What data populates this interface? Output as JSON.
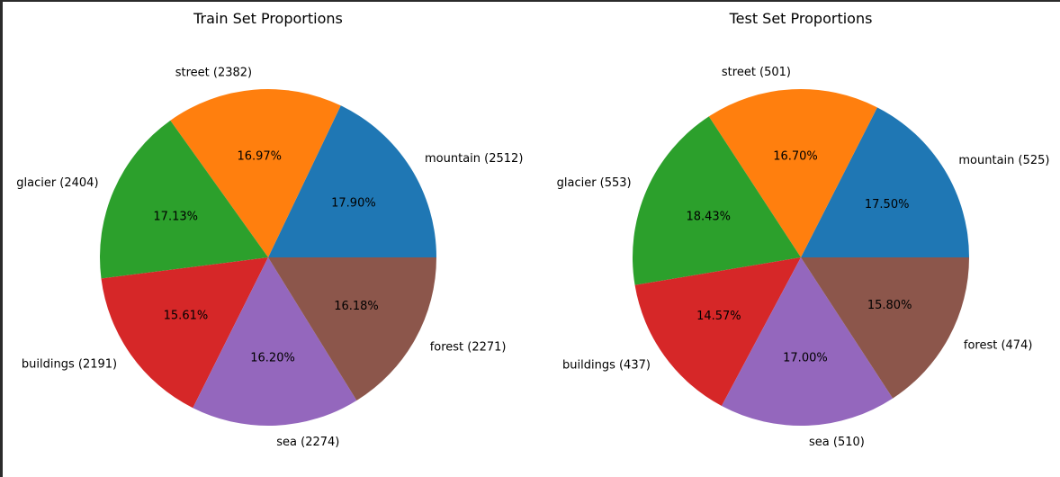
{
  "colors": {
    "palette": [
      "#1f77b4",
      "#ff7f0e",
      "#2ca02c",
      "#d62728",
      "#9467bd",
      "#8c564b"
    ],
    "background": "#ffffff",
    "text": "#000000"
  },
  "chart_data": [
    {
      "type": "pie",
      "title": "Train Set Proportions",
      "slices": [
        {
          "label": "mountain (2512)",
          "count": 2512,
          "pct": "17.90%",
          "color": "#1f77b4"
        },
        {
          "label": "street (2382)",
          "count": 2382,
          "pct": "16.97%",
          "color": "#ff7f0e"
        },
        {
          "label": "glacier (2404)",
          "count": 2404,
          "pct": "17.13%",
          "color": "#2ca02c"
        },
        {
          "label": "buildings (2191)",
          "count": 2191,
          "pct": "15.61%",
          "color": "#d62728"
        },
        {
          "label": "sea (2274)",
          "count": 2274,
          "pct": "16.20%",
          "color": "#9467bd"
        },
        {
          "label": "forest (2271)",
          "count": 2271,
          "pct": "16.18%",
          "color": "#8c564b"
        }
      ],
      "start_angle_deg": 0,
      "direction": "counterclockwise"
    },
    {
      "type": "pie",
      "title": "Test Set Proportions",
      "slices": [
        {
          "label": "mountain (525)",
          "count": 525,
          "pct": "17.50%",
          "color": "#1f77b4"
        },
        {
          "label": "street (501)",
          "count": 501,
          "pct": "16.70%",
          "color": "#ff7f0e"
        },
        {
          "label": "glacier (553)",
          "count": 553,
          "pct": "18.43%",
          "color": "#2ca02c"
        },
        {
          "label": "buildings (437)",
          "count": 437,
          "pct": "14.57%",
          "color": "#d62728"
        },
        {
          "label": "sea (510)",
          "count": 510,
          "pct": "17.00%",
          "color": "#9467bd"
        },
        {
          "label": "forest (474)",
          "count": 474,
          "pct": "15.80%",
          "color": "#8c564b"
        }
      ],
      "start_angle_deg": 0,
      "direction": "counterclockwise"
    }
  ]
}
